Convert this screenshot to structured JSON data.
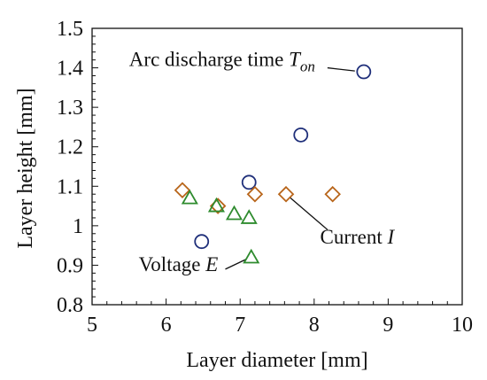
{
  "chart_data": {
    "type": "scatter",
    "title": "",
    "xlabel": "Layer diameter [mm]",
    "ylabel": "Layer height [mm]",
    "xlim": [
      5,
      10
    ],
    "ylim": [
      0.8,
      1.5
    ],
    "xticks": [
      5,
      6,
      7,
      8,
      9,
      10
    ],
    "xtick_labels": [
      "5",
      "6",
      "7",
      "8",
      "9",
      "10"
    ],
    "yticks": [
      0.8,
      0.9,
      1.0,
      1.1,
      1.2,
      1.3,
      1.4,
      1.5
    ],
    "ytick_labels": [
      "0.8",
      "0.9",
      "1",
      "1.1",
      "1.2",
      "1.3",
      "1.4",
      "1.5"
    ],
    "grid": false,
    "legend": "none",
    "series": [
      {
        "marker": "circle",
        "color": "#1f2f7a",
        "points": [
          {
            "x": 6.48,
            "y": 0.96
          },
          {
            "x": 7.12,
            "y": 1.11
          },
          {
            "x": 7.82,
            "y": 1.23
          },
          {
            "x": 8.67,
            "y": 1.39
          }
        ]
      },
      {
        "marker": "diamond",
        "color": "#b8651a",
        "points": [
          {
            "x": 6.22,
            "y": 1.09
          },
          {
            "x": 6.7,
            "y": 1.05
          },
          {
            "x": 7.2,
            "y": 1.08
          },
          {
            "x": 7.62,
            "y": 1.08
          },
          {
            "x": 8.25,
            "y": 1.08
          }
        ]
      },
      {
        "marker": "triangle",
        "color": "#2e8b2e",
        "points": [
          {
            "x": 6.32,
            "y": 1.07
          },
          {
            "x": 6.68,
            "y": 1.05
          },
          {
            "x": 6.92,
            "y": 1.03
          },
          {
            "x": 7.12,
            "y": 1.02
          },
          {
            "x": 7.15,
            "y": 0.92
          }
        ]
      }
    ],
    "annotations": [
      {
        "text": "Arc discharge time ",
        "symbol": "T",
        "subscript": "on",
        "text_at": {
          "x": 5.5,
          "y": 1.405
        },
        "arrow_from": {
          "x": 8.18,
          "y": 1.4
        },
        "arrow_to": {
          "x": 8.55,
          "y": 1.392
        }
      },
      {
        "text": "Current ",
        "symbol": "I",
        "subscript": "",
        "text_at": {
          "x": 8.08,
          "y": 0.955
        },
        "arrow_from": {
          "x": 8.18,
          "y": 0.99
        },
        "arrow_to": {
          "x": 7.67,
          "y": 1.072
        }
      },
      {
        "text": "Voltage ",
        "symbol": "E",
        "subscript": "",
        "text_at": {
          "x": 5.63,
          "y": 0.885
        },
        "arrow_from": {
          "x": 6.8,
          "y": 0.89
        },
        "arrow_to": {
          "x": 7.08,
          "y": 0.915
        }
      }
    ]
  }
}
